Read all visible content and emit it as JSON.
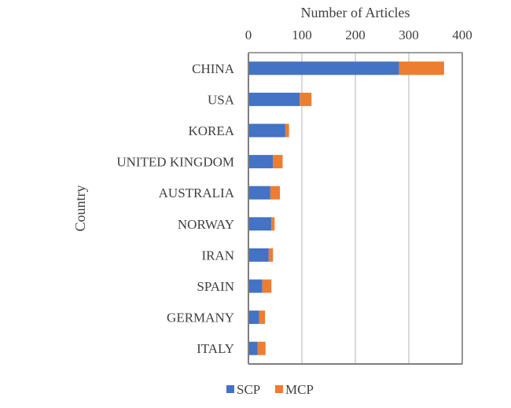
{
  "chart_data": {
    "type": "bar",
    "orientation": "horizontal",
    "stacked": true,
    "xlabel": "Number of Articles",
    "ylabel": "Country",
    "x_axis_position": "top",
    "xlim": [
      0,
      400
    ],
    "xticks": [
      0,
      100,
      200,
      300,
      400
    ],
    "grid": true,
    "legend_position": "bottom",
    "categories": [
      "CHINA",
      "USA",
      "KOREA",
      "UNITED KINGDOM",
      "AUSTRALIA",
      "NORWAY",
      "IRAN",
      "SPAIN",
      "GERMANY",
      "ITALY"
    ],
    "series": [
      {
        "name": "SCP",
        "color": "#4472C4",
        "values": [
          282,
          96,
          69,
          46,
          41,
          43,
          38,
          26,
          20,
          17
        ]
      },
      {
        "name": "MCP",
        "color": "#ED7D31",
        "values": [
          84,
          22,
          7,
          18,
          18,
          6,
          8,
          17,
          11,
          15
        ]
      }
    ]
  }
}
